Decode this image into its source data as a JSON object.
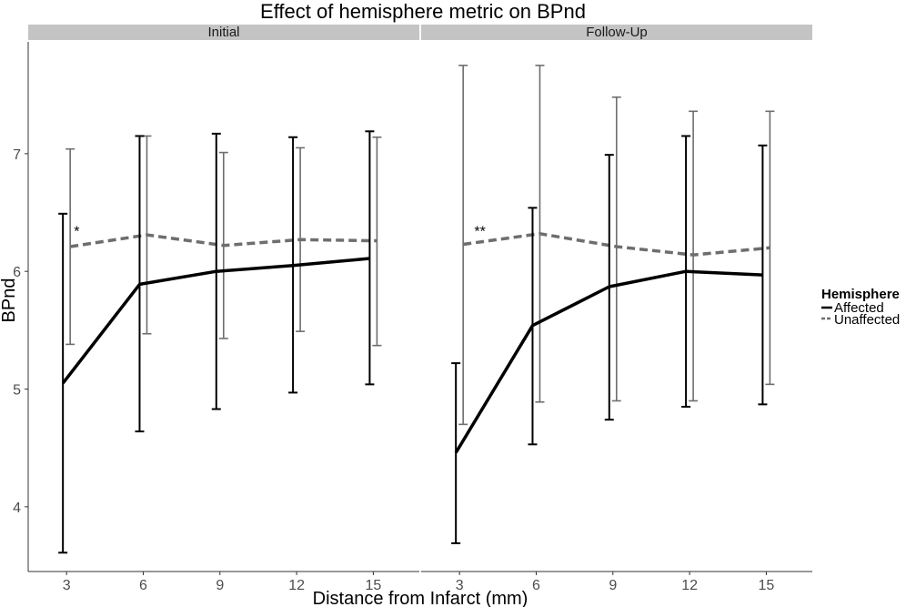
{
  "chart_data": {
    "type": "line",
    "title": "Effect of hemisphere metric on BPnd",
    "xlabel": "Distance from Infarct (mm)",
    "ylabel": "BPnd",
    "x_ticks": [
      3,
      6,
      9,
      12,
      15
    ],
    "y_ticks": [
      4,
      5,
      6,
      7
    ],
    "xlim": [
      1.5,
      16.8
    ],
    "ylim": [
      3.45,
      7.95
    ],
    "grid": false,
    "legend": {
      "title": "Hemisphere",
      "position": "right",
      "entries": [
        "Affected",
        "Unaffected"
      ]
    },
    "series_styles": {
      "Affected": {
        "color": "#000000",
        "dash": "solid"
      },
      "Unaffected": {
        "color": "#6e6e6e",
        "dash": "dashed"
      }
    },
    "panels": [
      {
        "strip": "Initial",
        "annotation": {
          "text": "*",
          "x": 3.4,
          "y": 6.3
        },
        "series": [
          {
            "name": "Affected",
            "x": [
              3,
              6,
              9,
              12,
              15
            ],
            "values": [
              5.05,
              5.89,
              6.0,
              6.05,
              6.11
            ],
            "lower": [
              3.61,
              4.64,
              4.83,
              4.97,
              5.04
            ],
            "upper": [
              6.49,
              7.15,
              7.17,
              7.14,
              7.19
            ]
          },
          {
            "name": "Unaffected",
            "x": [
              3,
              6,
              9,
              12,
              15
            ],
            "values": [
              6.21,
              6.31,
              6.22,
              6.27,
              6.26
            ],
            "lower": [
              5.38,
              5.47,
              5.43,
              5.49,
              5.37
            ],
            "upper": [
              7.04,
              7.15,
              7.01,
              7.05,
              7.14
            ]
          }
        ]
      },
      {
        "strip": "Follow-Up",
        "annotation": {
          "text": "**",
          "x": 3.8,
          "y": 6.3
        },
        "series": [
          {
            "name": "Affected",
            "x": [
              3,
              6,
              9,
              12,
              15
            ],
            "values": [
              4.46,
              5.54,
              5.87,
              6.0,
              5.97
            ],
            "lower": [
              3.69,
              4.53,
              4.74,
              4.85,
              4.87
            ],
            "upper": [
              5.22,
              6.54,
              6.99,
              7.15,
              7.07
            ]
          },
          {
            "name": "Unaffected",
            "x": [
              3,
              6,
              9,
              12,
              15
            ],
            "values": [
              6.23,
              6.32,
              6.21,
              6.14,
              6.2
            ],
            "lower": [
              4.7,
              4.89,
              4.9,
              4.9,
              5.04
            ],
            "upper": [
              7.75,
              7.75,
              7.48,
              7.36,
              7.36
            ]
          }
        ]
      }
    ]
  }
}
